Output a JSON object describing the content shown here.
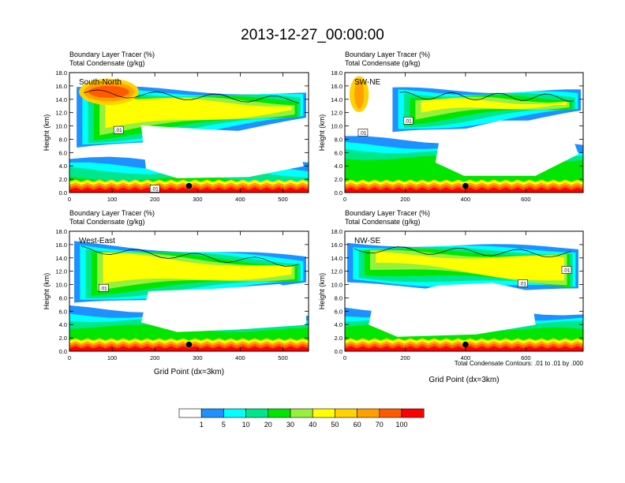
{
  "title": "2013-12-27_00:00:00",
  "contour_note": "Total Condensate Contours: .01 to .01 by .000",
  "colors": {
    "levels": [
      "#ffffff",
      "#1e90ff",
      "#00ffff",
      "#00e68c",
      "#00e600",
      "#96f03c",
      "#ffff00",
      "#ffd200",
      "#ffa000",
      "#ff5a00",
      "#ff0000"
    ],
    "contour": "#000000"
  },
  "colorbar": {
    "labels": [
      "1",
      "5",
      "10",
      "20",
      "30",
      "40",
      "50",
      "60",
      "70",
      "100"
    ]
  },
  "chart_data": [
    {
      "type": "heatmap",
      "subtitle1": "Boundary Layer Tracer   (%)",
      "subtitle2": "Total Condensate   (g/kg)",
      "panel_label": "South-North",
      "ylabel": "Height (km)",
      "xlabel": "",
      "xlim": [
        0,
        560
      ],
      "ylim": [
        0,
        18
      ],
      "xticks": [
        "0",
        "100",
        "200",
        "300",
        "400",
        "500"
      ],
      "xtick_values": [
        0,
        100,
        200,
        300,
        400,
        500
      ],
      "yticks": [
        "0.0",
        "2.0",
        "4.0",
        "6.0",
        "8.0",
        "10.0",
        "12.0",
        "14.0",
        "16.0",
        "18.0"
      ],
      "contour_labels": [
        {
          "text": ".01",
          "x": 115,
          "y": 9.4
        },
        {
          "text": ".01",
          "x": 200,
          "y": 0.6
        }
      ],
      "marker_x": 280,
      "marker_y": 1.0
    },
    {
      "type": "heatmap",
      "subtitle1": "Boundary Layer Tracer   (%)",
      "subtitle2": "Total Condensate   (g/kg)",
      "panel_label": "SW-NE",
      "ylabel": "Height (km)",
      "xlabel": "",
      "xlim": [
        0,
        790
      ],
      "ylim": [
        0,
        18
      ],
      "xticks": [
        "0",
        "200",
        "400",
        "600"
      ],
      "xtick_values": [
        0,
        200,
        400,
        600
      ],
      "yticks": [
        "0.0",
        "2.0",
        "4.0",
        "6.0",
        "8.0",
        "10.0",
        "12.0",
        "14.0",
        "16.0",
        "18.0"
      ],
      "contour_labels": [
        {
          "text": ".01",
          "x": 60,
          "y": 9.0
        },
        {
          "text": ".01",
          "x": 210,
          "y": 10.8
        }
      ],
      "marker_x": 400,
      "marker_y": 1.0
    },
    {
      "type": "heatmap",
      "subtitle1": "Boundary Layer Tracer   (%)",
      "subtitle2": "Total Condensate   (g/kg)",
      "panel_label": "West-East",
      "ylabel": "Height (km)",
      "xlabel": "Grid Point (dx=3km)",
      "xlim": [
        0,
        560
      ],
      "ylim": [
        0,
        18
      ],
      "xticks": [
        "0",
        "100",
        "200",
        "300",
        "400",
        "500"
      ],
      "xtick_values": [
        0,
        100,
        200,
        300,
        400,
        500
      ],
      "yticks": [
        "0.0",
        "2.0",
        "4.0",
        "6.0",
        "8.0",
        "10.0",
        "12.0",
        "14.0",
        "16.0",
        "18.0"
      ],
      "contour_labels": [
        {
          "text": ".01",
          "x": 80,
          "y": 9.5
        }
      ],
      "marker_x": 280,
      "marker_y": 1.0
    },
    {
      "type": "heatmap",
      "subtitle1": "Boundary Layer Tracer   (%)",
      "subtitle2": "Total Condensate   (g/kg)",
      "panel_label": "NW-SE",
      "ylabel": "Height (km)",
      "xlabel": "Grid Point (dx=3km)",
      "xlim": [
        0,
        790
      ],
      "ylim": [
        0,
        18
      ],
      "xticks": [
        "0",
        "200",
        "400",
        "600"
      ],
      "xtick_values": [
        0,
        200,
        400,
        600
      ],
      "yticks": [
        "0.0",
        "2.0",
        "4.0",
        "6.0",
        "8.0",
        "10.0",
        "12.0",
        "14.0",
        "16.0",
        "18.0"
      ],
      "contour_labels": [
        {
          "text": ".01",
          "x": 590,
          "y": 10.2
        },
        {
          "text": ".01",
          "x": 735,
          "y": 12.2
        }
      ],
      "marker_x": 400,
      "marker_y": 1.0
    }
  ]
}
